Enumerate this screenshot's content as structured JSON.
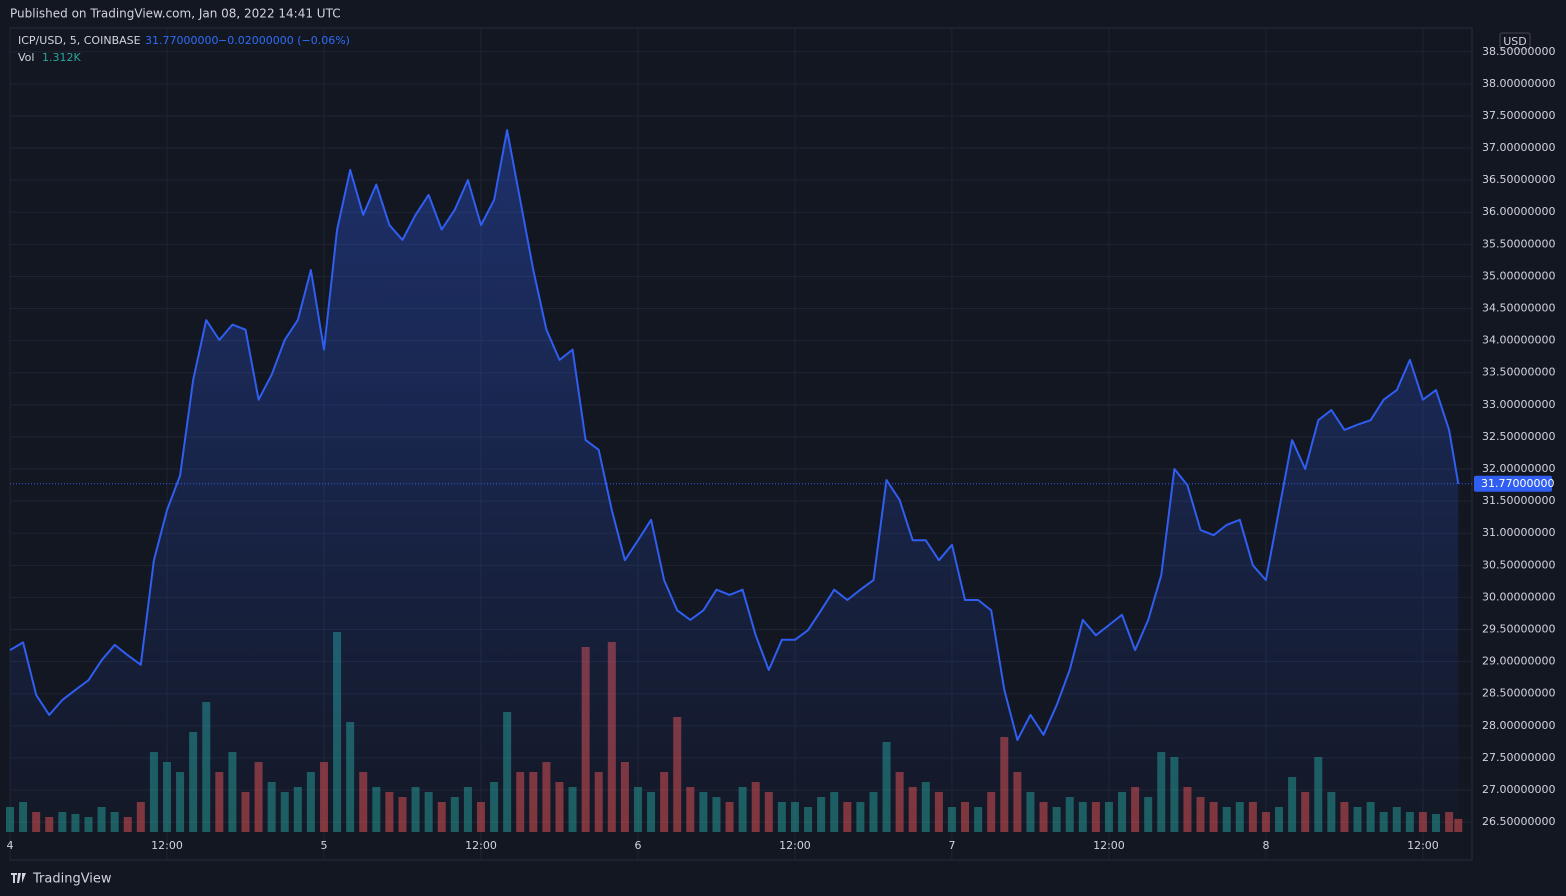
{
  "header": {
    "published": "Published on TradingView.com, Jan 08, 2022 14:41 UTC",
    "symbol": "ICP/USD, 5, COINBASE",
    "last": "31.77000000",
    "change": "−0.02000000 (−0.06%)",
    "vol_label": "Vol",
    "vol_value": "1.312K",
    "currency": "USD",
    "last_price_tag": "31.77000000"
  },
  "footer": {
    "brand": "TradingView"
  },
  "chart_data": {
    "type": "area",
    "grid": true,
    "x": [
      0,
      1,
      2,
      3,
      4,
      5,
      6,
      7,
      8,
      9,
      10,
      11,
      12,
      13,
      14,
      15,
      16,
      17,
      18,
      19,
      20,
      21,
      22,
      23,
      24,
      25,
      26,
      27,
      28,
      29,
      30,
      31,
      32,
      33,
      34,
      35,
      36,
      37,
      38,
      39,
      40,
      41,
      42,
      43,
      44,
      45,
      46,
      47,
      48,
      49,
      50,
      51,
      52,
      53,
      54,
      55,
      56,
      57,
      58,
      59,
      60,
      61,
      62,
      63,
      64,
      65,
      66,
      67,
      68,
      69,
      70,
      71,
      72,
      73,
      74,
      75,
      76,
      77,
      78,
      79,
      80,
      81,
      82,
      83,
      84,
      85,
      86,
      87,
      88,
      89,
      90,
      91,
      92,
      93,
      94,
      95,
      96,
      97,
      98,
      99,
      100,
      101,
      102,
      103,
      104,
      105,
      106,
      107,
      108,
      109,
      110,
      110.7
    ],
    "xlim": [
      0,
      111.75
    ],
    "xticks": [
      {
        "value": 0,
        "label": "4"
      },
      {
        "value": 12,
        "label": "12:00"
      },
      {
        "value": 24,
        "label": "5"
      },
      {
        "value": 36,
        "label": "12:00"
      },
      {
        "value": 48,
        "label": "6"
      },
      {
        "value": 60,
        "label": "12:00"
      },
      {
        "value": 72,
        "label": "7"
      },
      {
        "value": 84,
        "label": "12:00"
      },
      {
        "value": 96,
        "label": "8"
      },
      {
        "value": 108,
        "label": "12:00"
      }
    ],
    "ylim": [
      25.91,
      38.87
    ],
    "yticks": [
      {
        "value": 26.5,
        "label": "26.50000000"
      },
      {
        "value": 27,
        "label": "27.00000000"
      },
      {
        "value": 27.5,
        "label": "27.50000000"
      },
      {
        "value": 28,
        "label": "28.00000000"
      },
      {
        "value": 28.5,
        "label": "28.50000000"
      },
      {
        "value": 29,
        "label": "29.00000000"
      },
      {
        "value": 29.5,
        "label": "29.50000000"
      },
      {
        "value": 30,
        "label": "30.00000000"
      },
      {
        "value": 30.5,
        "label": "30.50000000"
      },
      {
        "value": 31,
        "label": "31.00000000"
      },
      {
        "value": 31.5,
        "label": "31.50000000"
      },
      {
        "value": 32,
        "label": "32.00000000"
      },
      {
        "value": 32.5,
        "label": "32.50000000"
      },
      {
        "value": 33,
        "label": "33.00000000"
      },
      {
        "value": 33.5,
        "label": "33.50000000"
      },
      {
        "value": 34,
        "label": "34.00000000"
      },
      {
        "value": 34.5,
        "label": "34.50000000"
      },
      {
        "value": 35,
        "label": "35.00000000"
      },
      {
        "value": 35.5,
        "label": "35.50000000"
      },
      {
        "value": 36,
        "label": "36.00000000"
      },
      {
        "value": 36.5,
        "label": "36.50000000"
      },
      {
        "value": 37,
        "label": "37.00000000"
      },
      {
        "value": 37.5,
        "label": "37.50000000"
      },
      {
        "value": 38,
        "label": "38.00000000"
      },
      {
        "value": 38.5,
        "label": "38.50000000"
      }
    ],
    "series": [
      {
        "color": "#2f5ef0",
        "values": [
          29.18,
          29.3,
          28.48,
          28.17,
          28.4,
          28.56,
          28.71,
          29.02,
          29.26,
          29.1,
          28.95,
          30.58,
          31.36,
          31.9,
          33.39,
          34.32,
          34.01,
          34.25,
          34.17,
          33.08,
          33.47,
          34.01,
          34.32,
          35.1,
          33.86,
          35.73,
          36.66,
          35.96,
          36.43,
          35.8,
          35.57,
          35.96,
          36.27,
          35.73,
          36.04,
          36.5,
          35.8,
          36.19,
          37.28,
          36.19,
          35.1,
          34.17,
          33.7,
          33.86,
          32.45,
          32.3,
          31.36,
          30.58,
          30.89,
          31.21,
          30.27,
          29.8,
          29.65,
          29.8,
          30.12,
          30.04,
          30.12,
          29.41,
          28.87,
          29.34,
          29.34,
          29.49,
          29.8,
          30.12,
          29.96,
          30.12,
          30.27,
          31.83,
          31.52,
          30.89,
          30.89,
          30.58,
          30.82,
          29.96,
          29.96,
          29.8,
          28.56,
          27.78,
          28.17,
          27.86,
          28.32,
          28.87,
          29.65,
          29.41,
          29.57,
          29.73,
          29.18,
          29.65,
          30.35,
          32.0,
          31.75,
          31.05,
          30.97,
          31.13,
          31.21,
          30.5,
          30.27,
          31.36,
          32.45,
          32.0,
          32.76,
          32.92,
          32.61,
          32.69,
          32.76,
          33.08,
          33.23,
          33.7,
          33.08,
          33.23,
          32.61,
          31.77
        ]
      }
    ],
    "volume": {
      "up_color": "#26a69a",
      "down_color": "#ef5350",
      "vlim": [
        0,
        23200
      ],
      "values": [
        2500,
        3000,
        2000,
        1500,
        2000,
        1800,
        1500,
        2500,
        2000,
        1500,
        3000,
        8000,
        7000,
        6000,
        10000,
        13000,
        6000,
        8000,
        4000,
        7000,
        5000,
        4000,
        4500,
        6000,
        7000,
        20000,
        11000,
        6000,
        4500,
        4000,
        3500,
        4500,
        4000,
        3000,
        3500,
        4500,
        3000,
        5000,
        12000,
        6000,
        6000,
        7000,
        5000,
        4500,
        18500,
        6000,
        19000,
        7000,
        4500,
        4000,
        6000,
        11500,
        4500,
        4000,
        3500,
        3000,
        4500,
        5000,
        4000,
        3000,
        3000,
        2500,
        3500,
        4000,
        3000,
        3000,
        4000,
        9000,
        6000,
        4500,
        5000,
        4000,
        2500,
        3000,
        2500,
        4000,
        9500,
        6000,
        4000,
        3000,
        2500,
        3500,
        3000,
        3000,
        3000,
        4000,
        4500,
        3500,
        8000,
        7500,
        4500,
        3500,
        3000,
        2500,
        3000,
        3000,
        2000,
        2500,
        5500,
        4000,
        7500,
        4000,
        3000,
        2500,
        3000,
        2000,
        2500,
        2000,
        2000,
        1800,
        2000,
        1312
      ]
    }
  }
}
